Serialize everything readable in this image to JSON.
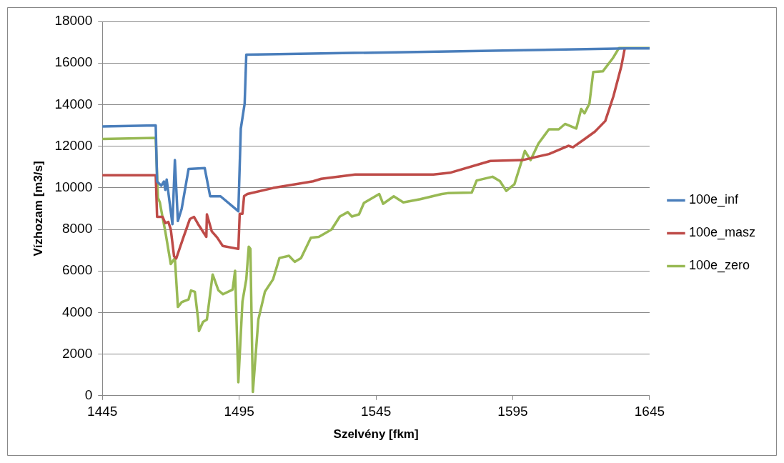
{
  "chart_data": {
    "type": "line",
    "xlabel": "Szelvény [fkm]",
    "ylabel": "Vízhozam [m3/s]",
    "xlim": [
      1445,
      1645
    ],
    "xticks": [
      1445,
      1495,
      1545,
      1595,
      1645
    ],
    "ylim": [
      0,
      18000
    ],
    "yticks": [
      0,
      2000,
      4000,
      6000,
      8000,
      10000,
      12000,
      14000,
      16000,
      18000
    ],
    "grid": "y",
    "legend": "right",
    "marker": "none",
    "line_style": "solid",
    "series": [
      {
        "name": "100e_inf",
        "color": "#4a7ebb",
        "x": [
          1445,
          1464.5,
          1465,
          1466.5,
          1467.5,
          1468,
          1468.5,
          1470.6,
          1471.5,
          1472.6,
          1474,
          1476.5,
          1482.4,
          1484.4,
          1488.2,
          1494.7,
          1495.6,
          1497,
          1497.6,
          1636.8,
          1645
        ],
        "values": [
          12950,
          13000,
          10300,
          10100,
          10300,
          9900,
          10400,
          8250,
          11330,
          8400,
          9000,
          10900,
          10950,
          9590,
          9590,
          8870,
          12850,
          14050,
          16400,
          16700,
          16700
        ]
      },
      {
        "name": "100e_masz",
        "color": "#be4b48",
        "x": [
          1445,
          1464.5,
          1465,
          1467,
          1468,
          1469.1,
          1470,
          1471.2,
          1472,
          1474.4,
          1477,
          1478.5,
          1480,
          1483,
          1483.2,
          1485,
          1487,
          1489,
          1494.7,
          1495.2,
          1496.2,
          1496.8,
          1498,
          1507.4,
          1522,
          1525,
          1537.4,
          1566,
          1572,
          1586.8,
          1598.5,
          1608.2,
          1615.3,
          1617,
          1621.2,
          1625,
          1628.8,
          1631.8,
          1634.7,
          1635.9
        ],
        "values": [
          10600,
          10600,
          8600,
          8600,
          8300,
          8360,
          8000,
          6700,
          6600,
          7530,
          8500,
          8600,
          8250,
          7640,
          8720,
          7900,
          7600,
          7200,
          7060,
          8750,
          8750,
          9600,
          9700,
          9990,
          10310,
          10430,
          10640,
          10640,
          10720,
          11290,
          11330,
          11620,
          12020,
          11950,
          12340,
          12700,
          13210,
          14410,
          15860,
          16690
        ]
      },
      {
        "name": "100e_zero",
        "color": "#98b954",
        "x": [
          1445,
          1464.5,
          1465.3,
          1466,
          1466.8,
          1468,
          1470,
          1471.5,
          1472.6,
          1474,
          1476.5,
          1477.4,
          1478.8,
          1480,
          1480.3,
          1481.8,
          1483.2,
          1485.3,
          1487.4,
          1489.1,
          1492.6,
          1493.5,
          1494.7,
          1496.2,
          1497.6,
          1498.5,
          1499.1,
          1500,
          1502,
          1504.4,
          1507.4,
          1509.7,
          1513.2,
          1515.3,
          1517.6,
          1521.2,
          1524.1,
          1526.5,
          1528.8,
          1531.8,
          1534.7,
          1536.2,
          1538.8,
          1540.6,
          1546.2,
          1547.6,
          1551.5,
          1555,
          1561.2,
          1569.1,
          1571.2,
          1580,
          1581.8,
          1587.6,
          1590.3,
          1592.6,
          1595.6,
          1599.4,
          1601.5,
          1604.4,
          1608.2,
          1611.8,
          1614.1,
          1618.2,
          1620,
          1621.2,
          1623,
          1624.4,
          1627.9,
          1631.5,
          1633.8,
          1645
        ],
        "values": [
          12350,
          12400,
          9520,
          9300,
          8720,
          7900,
          6330,
          6620,
          4270,
          4500,
          4630,
          5060,
          5000,
          3660,
          3110,
          3550,
          3660,
          5830,
          5070,
          4880,
          5100,
          6010,
          650,
          4530,
          5600,
          7170,
          7060,
          180,
          3660,
          5000,
          5600,
          6620,
          6730,
          6440,
          6620,
          7600,
          7640,
          7820,
          8000,
          8620,
          8830,
          8620,
          8720,
          9270,
          9700,
          9230,
          9590,
          9300,
          9450,
          9700,
          9740,
          9770,
          10350,
          10530,
          10320,
          9850,
          10170,
          11770,
          11330,
          12130,
          12810,
          12810,
          13070,
          12850,
          13790,
          13580,
          14050,
          15570,
          15600,
          16220,
          16720,
          16720
        ]
      }
    ]
  }
}
